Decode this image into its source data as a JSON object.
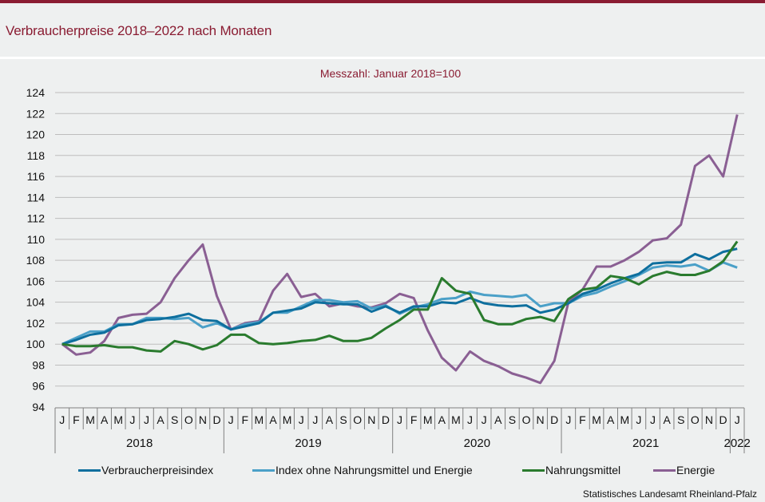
{
  "header": {
    "title": "Verbraucherpreise 2018–2022 nach Monaten"
  },
  "source": "Statistisches Landesamt Rheinland-Pfalz",
  "chart_data": {
    "type": "line",
    "title": "Verbraucherpreise 2018–2022 nach Monaten",
    "subtitle": "Messzahl:  Januar  2018=100",
    "xlabel": "",
    "ylabel": "",
    "ylim": [
      94,
      124
    ],
    "yticks": [
      94,
      96,
      98,
      100,
      102,
      104,
      106,
      108,
      110,
      112,
      114,
      116,
      118,
      120,
      122,
      124
    ],
    "grid": true,
    "legend_position": "bottom",
    "month_labels": [
      "J",
      "F",
      "M",
      "A",
      "M",
      "J",
      "J",
      "A",
      "S",
      "O",
      "N",
      "D",
      "J",
      "F",
      "M",
      "A",
      "M",
      "J",
      "J",
      "A",
      "S",
      "O",
      "N",
      "D",
      "J",
      "F",
      "M",
      "A",
      "M",
      "J",
      "J",
      "A",
      "S",
      "O",
      "N",
      "D",
      "J",
      "F",
      "M",
      "A",
      "M",
      "J",
      "J",
      "A",
      "S",
      "O",
      "N",
      "D",
      "J"
    ],
    "years": [
      {
        "label": "2018",
        "months": 12
      },
      {
        "label": "2019",
        "months": 12
      },
      {
        "label": "2020",
        "months": 12
      },
      {
        "label": "2021",
        "months": 12
      },
      {
        "label": "2022",
        "months": 1
      }
    ],
    "series": [
      {
        "name": "Verbraucherpreisindex",
        "color": "#0e6f9e",
        "values": [
          100.0,
          100.4,
          100.9,
          101.1,
          101.8,
          101.9,
          102.3,
          102.4,
          102.6,
          102.9,
          102.3,
          102.2,
          101.4,
          101.7,
          102.0,
          103.0,
          103.2,
          103.4,
          104.0,
          103.9,
          103.8,
          103.8,
          103.1,
          103.6,
          103.0,
          103.6,
          103.6,
          104.0,
          103.9,
          104.4,
          103.9,
          103.7,
          103.6,
          103.7,
          103.0,
          103.3,
          103.9,
          104.8,
          105.2,
          105.8,
          106.3,
          106.7,
          107.7,
          107.8,
          107.8,
          108.6,
          108.1,
          108.8,
          109.1
        ]
      },
      {
        "name": "Index ohne Nahrungsmittel und Energie",
        "color": "#4ba0c8",
        "values": [
          100.0,
          100.6,
          101.2,
          101.2,
          101.9,
          101.9,
          102.5,
          102.5,
          102.4,
          102.5,
          101.6,
          102.0,
          101.4,
          101.9,
          102.1,
          103.0,
          103.0,
          103.6,
          104.2,
          104.2,
          104.0,
          104.1,
          103.4,
          103.7,
          102.9,
          103.5,
          103.8,
          104.3,
          104.4,
          105.0,
          104.7,
          104.6,
          104.5,
          104.7,
          103.6,
          103.9,
          103.9,
          104.6,
          104.9,
          105.5,
          106.0,
          106.6,
          107.3,
          107.5,
          107.4,
          107.6,
          107.0,
          107.8,
          107.3
        ]
      },
      {
        "name": "Nahrungsmittel",
        "color": "#2a7b2e",
        "values": [
          100.0,
          99.8,
          99.8,
          99.9,
          99.7,
          99.7,
          99.4,
          99.3,
          100.3,
          100.0,
          99.5,
          99.9,
          100.9,
          100.9,
          100.1,
          100.0,
          100.1,
          100.3,
          100.4,
          100.8,
          100.3,
          100.3,
          100.6,
          101.5,
          102.3,
          103.3,
          103.3,
          106.3,
          105.1,
          104.8,
          102.3,
          101.9,
          101.9,
          102.4,
          102.6,
          102.2,
          104.3,
          105.2,
          105.4,
          106.5,
          106.3,
          105.7,
          106.5,
          106.9,
          106.6,
          106.6,
          107.0,
          107.9,
          109.8
        ]
      },
      {
        "name": "Energie",
        "color": "#8a5f93",
        "values": [
          100.0,
          99.0,
          99.2,
          100.3,
          102.5,
          102.8,
          102.9,
          104.0,
          106.3,
          108.0,
          109.5,
          104.6,
          101.4,
          102.0,
          102.2,
          105.1,
          106.7,
          104.5,
          104.8,
          103.6,
          103.9,
          103.6,
          103.5,
          103.9,
          104.8,
          104.4,
          101.3,
          98.7,
          97.5,
          99.3,
          98.4,
          97.9,
          97.2,
          96.8,
          96.3,
          98.4,
          104.0,
          105.2,
          107.4,
          107.4,
          108.0,
          108.8,
          109.9,
          110.1,
          111.4,
          117.0,
          118.0,
          116.0,
          121.9
        ]
      }
    ]
  }
}
